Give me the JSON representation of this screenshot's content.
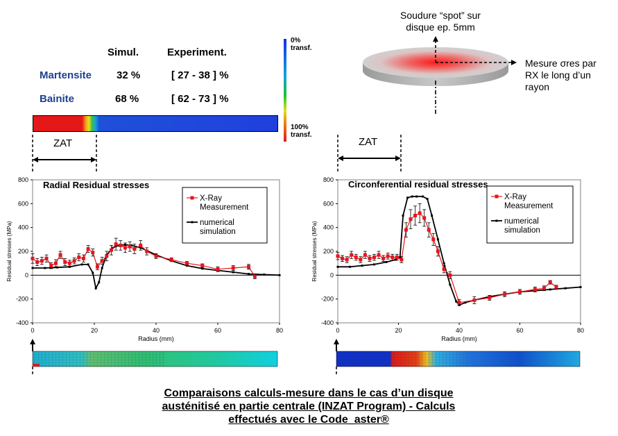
{
  "table": {
    "col_simul": "Simul.",
    "col_experiment": "Experiment.",
    "rows": [
      {
        "phase": "Martensite",
        "simul": "32 %",
        "experiment": "[ 27 - 38 ] %"
      },
      {
        "phase": "Bainite",
        "simul": "68 %",
        "experiment": "[ 62 - 73 ] %"
      }
    ]
  },
  "colorbar": {
    "top_label_1": "0%",
    "top_label_2": "transf.",
    "bottom_label_1": "100%",
    "bottom_label_2": "transf."
  },
  "zat_label": "ZAT",
  "disk": {
    "title_line1": "Soudure “spot” sur",
    "title_line2": "disque ep. 5mm",
    "measure_line1": "Mesure σres par",
    "measure_line2": "RX le long d’un",
    "measure_line3": "rayon"
  },
  "caption": {
    "line1": "Comparaisons calculs-mesure dans le cas d’un disque",
    "line2": "austénitisé en partie centrale (INZAT Program) - Calculs",
    "line3": "effectués avec le Code_aster®"
  },
  "colors": {
    "measurement": "#e8141c",
    "simulation": "#000000",
    "phase_label": "#1f3f8f"
  },
  "chart_data": [
    {
      "type": "line",
      "title": "Radial Residual stresses",
      "xlabel": "Radius (mm)",
      "ylabel": "Residual stresses (MPa)",
      "xlim": [
        0,
        80
      ],
      "ylim": [
        -400,
        800
      ],
      "xticks": [
        "0",
        "20",
        "40",
        "60",
        "80"
      ],
      "yticks": [
        "800",
        "600",
        "400",
        "200",
        "0",
        "-200",
        "-400"
      ],
      "grid": "horizontal at 0",
      "legend_position": "top-right",
      "series": [
        {
          "name": "X-Ray Measurement",
          "x": [
            0,
            1.5,
            3,
            4.5,
            6,
            7.5,
            9,
            10.5,
            12,
            13.5,
            15,
            16.5,
            18,
            19.5,
            21,
            22.5,
            24,
            25.5,
            27,
            28.5,
            30,
            31.5,
            33,
            35,
            37,
            40,
            45,
            50,
            55,
            60,
            65,
            70,
            72
          ],
          "y": [
            140,
            110,
            120,
            140,
            80,
            100,
            170,
            110,
            100,
            120,
            150,
            140,
            220,
            190,
            70,
            120,
            160,
            210,
            260,
            250,
            230,
            240,
            220,
            250,
            200,
            160,
            130,
            100,
            80,
            50,
            60,
            70,
            -10
          ],
          "error": [
            40,
            30,
            30,
            30,
            25,
            30,
            30,
            30,
            25,
            25,
            30,
            30,
            30,
            30,
            25,
            30,
            40,
            40,
            50,
            40,
            40,
            40,
            40,
            40,
            30,
            20,
            15,
            15,
            15,
            20,
            20,
            20,
            20
          ]
        },
        {
          "name": "numerical simulation",
          "x": [
            0,
            4,
            8,
            12,
            16,
            18,
            19.5,
            20.5,
            21.5,
            22.5,
            24,
            26,
            28,
            30,
            32,
            35,
            40,
            45,
            50,
            55,
            60,
            65,
            70,
            75,
            80
          ],
          "y": [
            60,
            60,
            65,
            70,
            90,
            90,
            20,
            -110,
            -60,
            60,
            170,
            230,
            250,
            255,
            250,
            230,
            170,
            120,
            80,
            55,
            40,
            25,
            10,
            5,
            0
          ]
        }
      ]
    },
    {
      "type": "line",
      "title": "Circonferential residual stresses",
      "xlabel": "Radius (mm)",
      "ylabel": "Residual stresses (MPa)",
      "xlim": [
        0,
        80
      ],
      "ylim": [
        -400,
        800
      ],
      "xticks": [
        "0",
        "20",
        "40",
        "60",
        "80"
      ],
      "yticks": [
        "800",
        "600",
        "400",
        "200",
        "0",
        "-200",
        "-400"
      ],
      "grid": "horizontal at 0",
      "legend_position": "top-right",
      "series": [
        {
          "name": "X-Ray Measurement",
          "x": [
            0,
            1.5,
            3,
            4.5,
            6,
            7.5,
            9,
            10.5,
            12,
            13.5,
            15,
            16.5,
            18,
            19.5,
            21,
            22.5,
            24,
            25.5,
            27,
            28.5,
            30,
            31.5,
            33,
            35,
            37,
            40,
            45,
            50,
            55,
            60,
            65,
            68,
            70,
            72
          ],
          "y": [
            160,
            140,
            130,
            170,
            150,
            130,
            170,
            140,
            150,
            170,
            140,
            160,
            150,
            150,
            130,
            380,
            470,
            500,
            520,
            480,
            380,
            300,
            200,
            50,
            0,
            -230,
            -210,
            -190,
            -160,
            -140,
            -120,
            -110,
            -60,
            -100
          ],
          "error": [
            30,
            25,
            25,
            30,
            25,
            25,
            30,
            25,
            25,
            30,
            25,
            25,
            25,
            25,
            25,
            60,
            80,
            80,
            80,
            70,
            60,
            50,
            40,
            30,
            30,
            25,
            30,
            20,
            20,
            20,
            20,
            20,
            15,
            15
          ]
        },
        {
          "name": "numerical simulation",
          "x": [
            0,
            4,
            8,
            12,
            16,
            19,
            20.5,
            21.5,
            23,
            24.5,
            26,
            28,
            29.5,
            31,
            33,
            35,
            37,
            39,
            40,
            42,
            45,
            50,
            55,
            60,
            65,
            70,
            75,
            80
          ],
          "y": [
            70,
            70,
            80,
            90,
            110,
            130,
            150,
            500,
            650,
            660,
            660,
            660,
            640,
            500,
            300,
            100,
            -80,
            -220,
            -250,
            -230,
            -210,
            -180,
            -160,
            -140,
            -130,
            -120,
            -110,
            -100
          ]
        }
      ]
    }
  ]
}
